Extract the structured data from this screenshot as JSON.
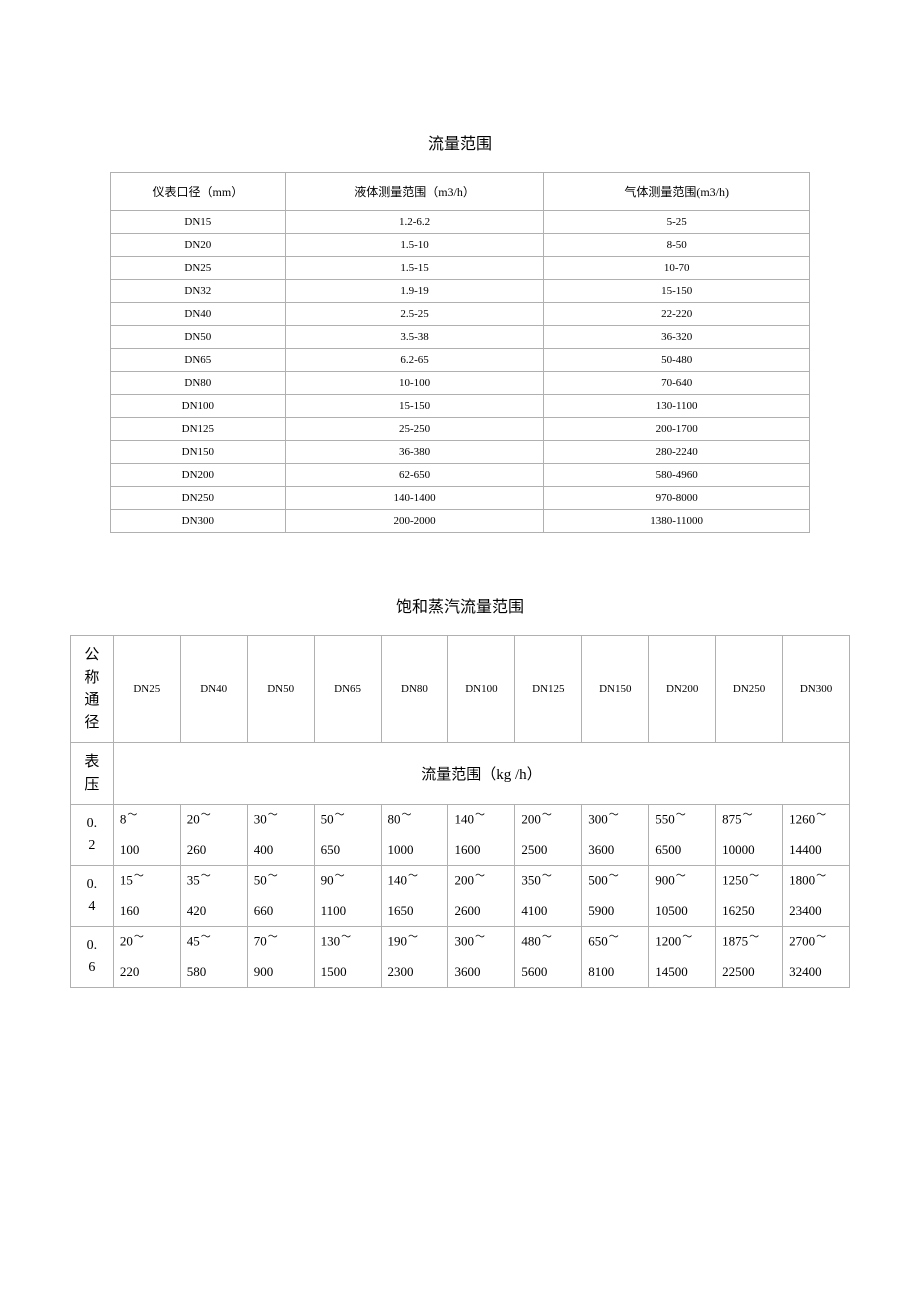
{
  "table1": {
    "title": "流量范围",
    "columns": [
      "仪表口径（mm）",
      "液体测量范围（m3/h）",
      "气体测量范围(m3/h)"
    ],
    "col_widths": [
      "25%",
      "37%",
      "38%"
    ],
    "rows": [
      [
        "DN15",
        "1.2-6.2",
        "5-25"
      ],
      [
        "DN20",
        "1.5-10",
        "8-50"
      ],
      [
        "DN25",
        "1.5-15",
        "10-70"
      ],
      [
        "DN32",
        "1.9-19",
        "15-150"
      ],
      [
        "DN40",
        "2.5-25",
        "22-220"
      ],
      [
        "DN50",
        "3.5-38",
        "36-320"
      ],
      [
        "DN65",
        "6.2-65",
        "50-480"
      ],
      [
        "DN80",
        "10-100",
        "70-640"
      ],
      [
        "DN100",
        "15-150",
        "130-1100"
      ],
      [
        "DN125",
        "25-250",
        "200-1700"
      ],
      [
        "DN150",
        "36-380",
        "280-2240"
      ],
      [
        "DN200",
        "62-650",
        "580-4960"
      ],
      [
        "DN250",
        "140-1400",
        "970-8000"
      ],
      [
        "DN300",
        "200-2000",
        "1380-11000"
      ]
    ],
    "border_color": "#b0b0b0",
    "text_color": "#000000",
    "background_color": "#ffffff",
    "header_fontsize": 12,
    "cell_fontsize": 11
  },
  "table2": {
    "title": "饱和蒸汽流量范围",
    "row_label_1": "公称通径",
    "row_label_2": "表压",
    "flow_header": "流量范围（kg /h）",
    "dn_columns": [
      "DN25",
      "DN40",
      "DN50",
      "DN65",
      "DN80",
      "DN100",
      "DN125",
      "DN150",
      "DN200",
      "DN250",
      "DN300"
    ],
    "first_col_width": "5.5%",
    "dn_col_width": "8.59%",
    "pressures": [
      "0.2",
      "0.4",
      "0.6"
    ],
    "values": [
      [
        [
          "8",
          "100"
        ],
        [
          "20",
          "260"
        ],
        [
          "30",
          "400"
        ],
        [
          "50",
          "650"
        ],
        [
          "80",
          "1000"
        ],
        [
          "140",
          "1600"
        ],
        [
          "200",
          "2500"
        ],
        [
          "300",
          "3600"
        ],
        [
          "550",
          "6500"
        ],
        [
          "875",
          "10000"
        ],
        [
          "1260",
          "14400"
        ]
      ],
      [
        [
          "15",
          "160"
        ],
        [
          "35",
          "420"
        ],
        [
          "50",
          "660"
        ],
        [
          "90",
          "1100"
        ],
        [
          "140",
          "1650"
        ],
        [
          "200",
          "2600"
        ],
        [
          "350",
          "4100"
        ],
        [
          "500",
          "5900"
        ],
        [
          "900",
          "10500"
        ],
        [
          "1250",
          "16250"
        ],
        [
          "1800",
          "23400"
        ]
      ],
      [
        [
          "20",
          "220"
        ],
        [
          "45",
          "580"
        ],
        [
          "70",
          "900"
        ],
        [
          "130",
          "1500"
        ],
        [
          "190",
          "2300"
        ],
        [
          "300",
          "3600"
        ],
        [
          "480",
          "5600"
        ],
        [
          "650",
          "8100"
        ],
        [
          "1200",
          "14500"
        ],
        [
          "1875",
          "22500"
        ],
        [
          "2700",
          "32400"
        ]
      ]
    ],
    "tilde": "～",
    "border_color": "#b0b0b0",
    "text_color": "#000000",
    "background_color": "#ffffff",
    "label_fontsize": 15,
    "cell_fontsize": 13,
    "header_fontsize": 11
  },
  "colors": {
    "page_bg": "#ffffff",
    "border": "#b0b0b0",
    "text": "#000000"
  }
}
